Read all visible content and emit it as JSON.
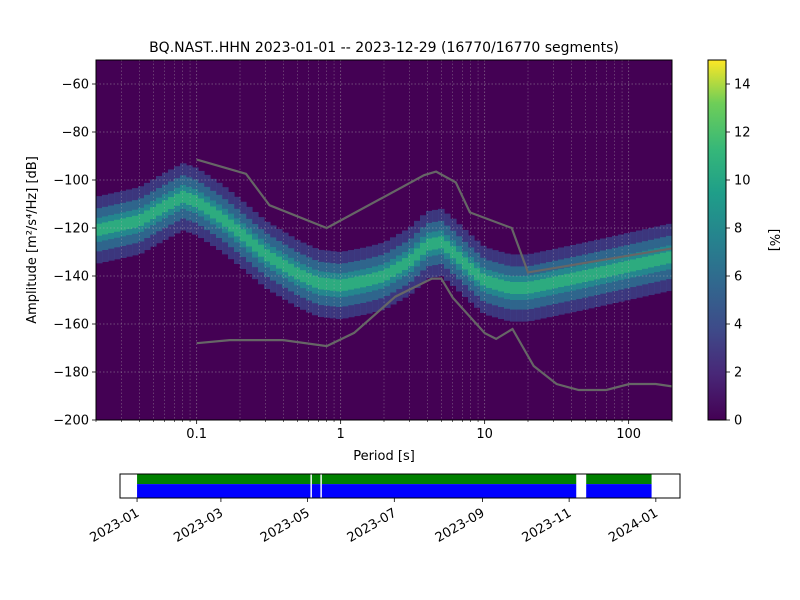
{
  "title": "BQ.NAST..HHN   2023-01-01 -- 2023-12-29  (16770/16770 segments)",
  "chart_data": [
    {
      "type": "heatmap",
      "name": "ppsd",
      "title": "BQ.NAST..HHN   2023-01-01 -- 2023-12-29  (16770/16770 segments)",
      "xlabel": "Period [s]",
      "ylabel": "Amplitude [m²/s⁴/Hz] [dB]",
      "xscale": "log",
      "xlim": [
        0.02,
        200
      ],
      "ylim": [
        -200,
        -50
      ],
      "xticks": [
        {
          "value": 0.1,
          "label": "0.1"
        },
        {
          "value": 1,
          "label": "1"
        },
        {
          "value": 10,
          "label": "10"
        },
        {
          "value": 100,
          "label": "100"
        }
      ],
      "yticks": [
        -200,
        -180,
        -160,
        -140,
        -120,
        -100,
        -80,
        -60
      ],
      "grid": true,
      "colorbar": {
        "label": "[%]",
        "min": 0,
        "max": 15,
        "ticks": [
          0,
          2,
          4,
          6,
          8,
          10,
          12,
          14
        ]
      },
      "density_band": [
        {
          "period": 0.02,
          "mode_db": -121
        },
        {
          "period": 0.04,
          "mode_db": -117
        },
        {
          "period": 0.06,
          "mode_db": -111
        },
        {
          "period": 0.08,
          "mode_db": -107
        },
        {
          "period": 0.1,
          "mode_db": -109
        },
        {
          "period": 0.15,
          "mode_db": -116
        },
        {
          "period": 0.2,
          "mode_db": -122
        },
        {
          "period": 0.3,
          "mode_db": -131
        },
        {
          "period": 0.5,
          "mode_db": -139
        },
        {
          "period": 0.7,
          "mode_db": -143
        },
        {
          "period": 1,
          "mode_db": -144
        },
        {
          "period": 1.5,
          "mode_db": -142
        },
        {
          "period": 2,
          "mode_db": -140
        },
        {
          "period": 3,
          "mode_db": -134
        },
        {
          "period": 4,
          "mode_db": -127
        },
        {
          "period": 5,
          "mode_db": -126
        },
        {
          "period": 6,
          "mode_db": -130
        },
        {
          "period": 8,
          "mode_db": -137
        },
        {
          "period": 10,
          "mode_db": -142
        },
        {
          "period": 15,
          "mode_db": -145
        },
        {
          "period": 20,
          "mode_db": -145
        },
        {
          "period": 50,
          "mode_db": -140
        },
        {
          "period": 100,
          "mode_db": -136
        },
        {
          "period": 200,
          "mode_db": -132
        }
      ],
      "nhnm": [
        [
          0.1,
          -91.5
        ],
        [
          0.22,
          -97.4
        ],
        [
          0.32,
          -110.5
        ],
        [
          0.8,
          -120
        ],
        [
          3.8,
          -98
        ],
        [
          4.6,
          -96.5
        ],
        [
          6.3,
          -101
        ],
        [
          7.9,
          -113.5
        ],
        [
          15.4,
          -120
        ],
        [
          20,
          -138.5
        ],
        [
          200,
          -128.5
        ]
      ],
      "nlnm": [
        [
          0.1,
          -168
        ],
        [
          0.17,
          -166.7
        ],
        [
          0.4,
          -166.7
        ],
        [
          0.8,
          -169.2
        ],
        [
          1.24,
          -163.7
        ],
        [
          2.4,
          -148.6
        ],
        [
          4.3,
          -141.1
        ],
        [
          5,
          -141.1
        ],
        [
          6,
          -149
        ],
        [
          10,
          -163.8
        ],
        [
          12,
          -166.2
        ],
        [
          15.6,
          -162.1
        ],
        [
          21.9,
          -177.5
        ],
        [
          31.6,
          -185
        ],
        [
          45,
          -187.5
        ],
        [
          70,
          -187.5
        ],
        [
          101,
          -185
        ],
        [
          154,
          -185
        ],
        [
          200,
          -186
        ]
      ]
    },
    {
      "type": "timeline",
      "name": "data-coverage",
      "xtick_labels": [
        "2023-01",
        "2023-03",
        "2023-05",
        "2023-07",
        "2023-09",
        "2023-11",
        "2024-01"
      ],
      "xlim": [
        "2022-12-20",
        "2024-01-18"
      ],
      "coverage": [
        {
          "start": "2023-01-01",
          "end": "2023-05-03"
        },
        {
          "start": "2023-05-04",
          "end": "2023-05-10"
        },
        {
          "start": "2023-05-11",
          "end": "2023-11-06"
        },
        {
          "start": "2023-11-13",
          "end": "2023-12-29"
        }
      ],
      "colors": {
        "processed": "#008000",
        "available": "#0000ff"
      }
    }
  ]
}
